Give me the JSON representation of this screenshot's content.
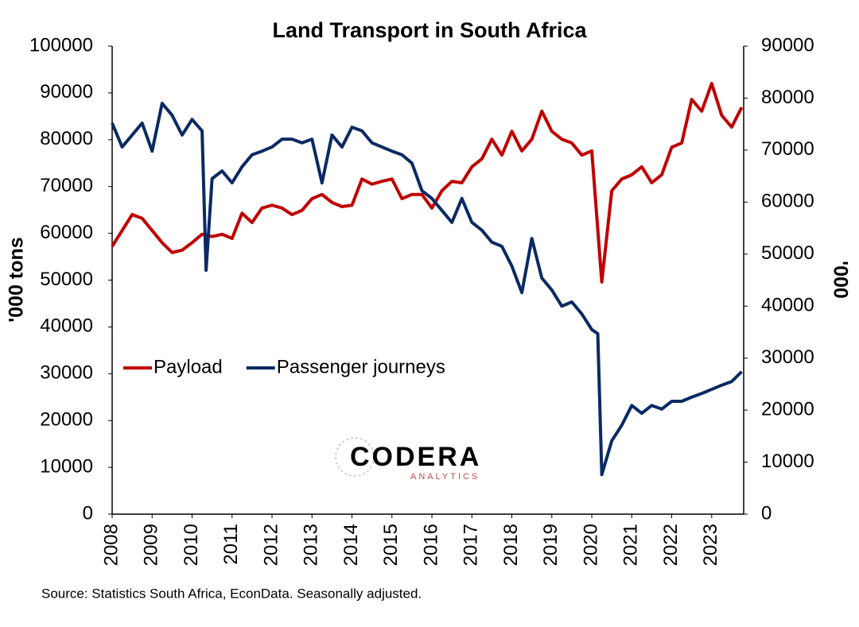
{
  "chart_data": {
    "type": "line",
    "title": "Land Transport in South Africa",
    "y_label": "'000 tons",
    "y2_label": "'000",
    "source": "Source: Statistics South Africa, EconData. Seasonally adjusted.",
    "logo": {
      "name": "CODERA",
      "sub": "ANALYTICS"
    },
    "xlim": [
      2008,
      2023.8
    ],
    "xticks": [
      2008,
      2009,
      2010,
      2011,
      2012,
      2013,
      2014,
      2015,
      2016,
      2017,
      2018,
      2019,
      2020,
      2021,
      2022,
      2023
    ],
    "ylim": [
      0,
      100000
    ],
    "yticks": [
      0,
      10000,
      20000,
      30000,
      40000,
      50000,
      60000,
      70000,
      80000,
      90000,
      100000
    ],
    "y2lim": [
      0,
      90000
    ],
    "y2ticks": [
      0,
      10000,
      20000,
      30000,
      40000,
      50000,
      60000,
      70000,
      80000,
      90000
    ],
    "grid": false,
    "legend": "left",
    "series": [
      {
        "name": "Payload",
        "color": "#c00000",
        "axis": "y",
        "x": [
          2008,
          2008.25,
          2008.5,
          2008.75,
          2009,
          2009.25,
          2009.5,
          2009.75,
          2010,
          2010.25,
          2010.5,
          2010.75,
          2011,
          2011.25,
          2011.5,
          2011.75,
          2012,
          2012.25,
          2012.5,
          2012.75,
          2013,
          2013.25,
          2013.5,
          2013.75,
          2014,
          2014.25,
          2014.5,
          2014.75,
          2015,
          2015.25,
          2015.5,
          2015.75,
          2016,
          2016.25,
          2016.5,
          2016.75,
          2017,
          2017.25,
          2017.5,
          2017.75,
          2018,
          2018.25,
          2018.5,
          2018.75,
          2019,
          2019.25,
          2019.5,
          2019.75,
          2020,
          2020.25,
          2020.5,
          2020.75,
          2021,
          2021.25,
          2021.5,
          2021.75,
          2022,
          2022.25,
          2022.5,
          2022.75,
          2023,
          2023.25,
          2023.5,
          2023.75
        ],
        "values": [
          57200,
          60600,
          64000,
          63200,
          60600,
          58000,
          55900,
          56400,
          58000,
          59800,
          59300,
          59800,
          58900,
          64300,
          62300,
          65400,
          66000,
          65400,
          64000,
          64900,
          67400,
          68300,
          66600,
          65700,
          66000,
          71600,
          70500,
          71100,
          71600,
          67400,
          68300,
          68300,
          65400,
          69100,
          71100,
          70800,
          74200,
          75900,
          80100,
          76700,
          81800,
          77600,
          80100,
          86100,
          81800,
          80100,
          79300,
          76700,
          77600,
          49600,
          69100,
          71600,
          72500,
          74200,
          70800,
          72500,
          78400,
          79300,
          88600,
          86100,
          92000,
          85200,
          82700,
          86900
        ]
      },
      {
        "name": "Passenger journeys",
        "color": "#0b2a63",
        "axis": "y2",
        "x": [
          2008,
          2008.25,
          2008.5,
          2008.75,
          2009,
          2009.25,
          2009.5,
          2009.75,
          2010,
          2010.25,
          2010.35,
          2010.5,
          2010.75,
          2011,
          2011.25,
          2011.5,
          2011.75,
          2012,
          2012.25,
          2012.5,
          2012.75,
          2013,
          2013.25,
          2013.5,
          2013.75,
          2014,
          2014.25,
          2014.5,
          2014.75,
          2015,
          2015.25,
          2015.5,
          2015.75,
          2016,
          2016.25,
          2016.5,
          2016.75,
          2017,
          2017.25,
          2017.5,
          2017.75,
          2018,
          2018.25,
          2018.5,
          2018.75,
          2019,
          2019.25,
          2019.5,
          2019.75,
          2020,
          2020.15,
          2020.25,
          2020.5,
          2020.75,
          2021,
          2021.25,
          2021.5,
          2021.75,
          2022,
          2022.25,
          2022.5,
          2022.75,
          2023,
          2023.25,
          2023.5,
          2023.75
        ],
        "values": [
          75200,
          70600,
          72900,
          75200,
          69800,
          79000,
          76700,
          72900,
          75900,
          73700,
          46900,
          64500,
          66000,
          63700,
          66800,
          69100,
          69800,
          70600,
          72100,
          72100,
          71400,
          72100,
          63700,
          72900,
          70600,
          74400,
          73700,
          71400,
          70600,
          69800,
          69100,
          67500,
          62200,
          60700,
          58400,
          56100,
          60700,
          56100,
          54600,
          52300,
          51500,
          47700,
          42600,
          53000,
          45400,
          43100,
          40000,
          40800,
          38500,
          35500,
          34700,
          7600,
          14100,
          17100,
          20900,
          19400,
          20900,
          20200,
          21700,
          21700,
          22500,
          23200,
          24000,
          24800,
          25500,
          27400
        ]
      }
    ]
  }
}
